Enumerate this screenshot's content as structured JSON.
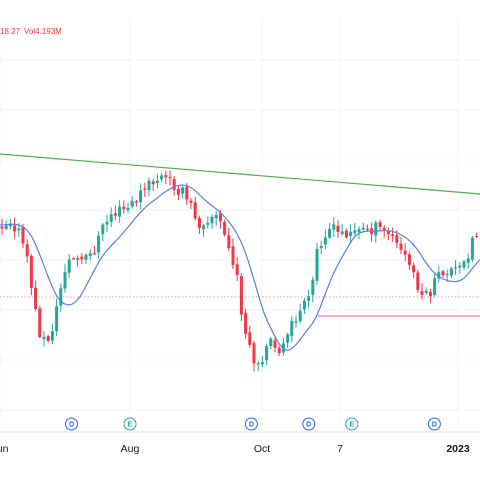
{
  "header": {
    "close_fragment": "18.27",
    "volume_label": "Vol",
    "volume_value": "4.193M"
  },
  "colors": {
    "up": "#26a69a",
    "down": "#f23645",
    "ma": "#5b7fe3",
    "trendline": "#4caf50",
    "support": "#f06292",
    "event_dividend": "#2962ff",
    "event_earnings": "#26a69a"
  },
  "chart_data": {
    "type": "candlestick",
    "x_ticks": [
      {
        "label": "Jun",
        "index": 0,
        "bold": false
      },
      {
        "label": "Aug",
        "index": 1,
        "bold": false
      },
      {
        "label": "Oct",
        "index": 2,
        "bold": false
      },
      {
        "label": "7",
        "index": 3,
        "bold": false
      },
      {
        "label": "2023",
        "index": 4,
        "bold": true
      }
    ],
    "events": [
      {
        "type": "dividend",
        "text": "D",
        "tick_pos": 0.55
      },
      {
        "type": "earnings",
        "text": "E",
        "tick_pos": 1.0
      },
      {
        "type": "dividend",
        "text": "D",
        "tick_pos": 1.92
      },
      {
        "type": "dividend",
        "text": "D",
        "tick_pos": 2.6
      },
      {
        "type": "earnings",
        "text": "E",
        "tick_pos": 3.1
      },
      {
        "type": "dividend",
        "text": "D",
        "tick_pos": 3.8
      }
    ],
    "lines": {
      "trendline": "descending",
      "moving_average": true,
      "support_level": true,
      "dotted_reference": true
    }
  }
}
